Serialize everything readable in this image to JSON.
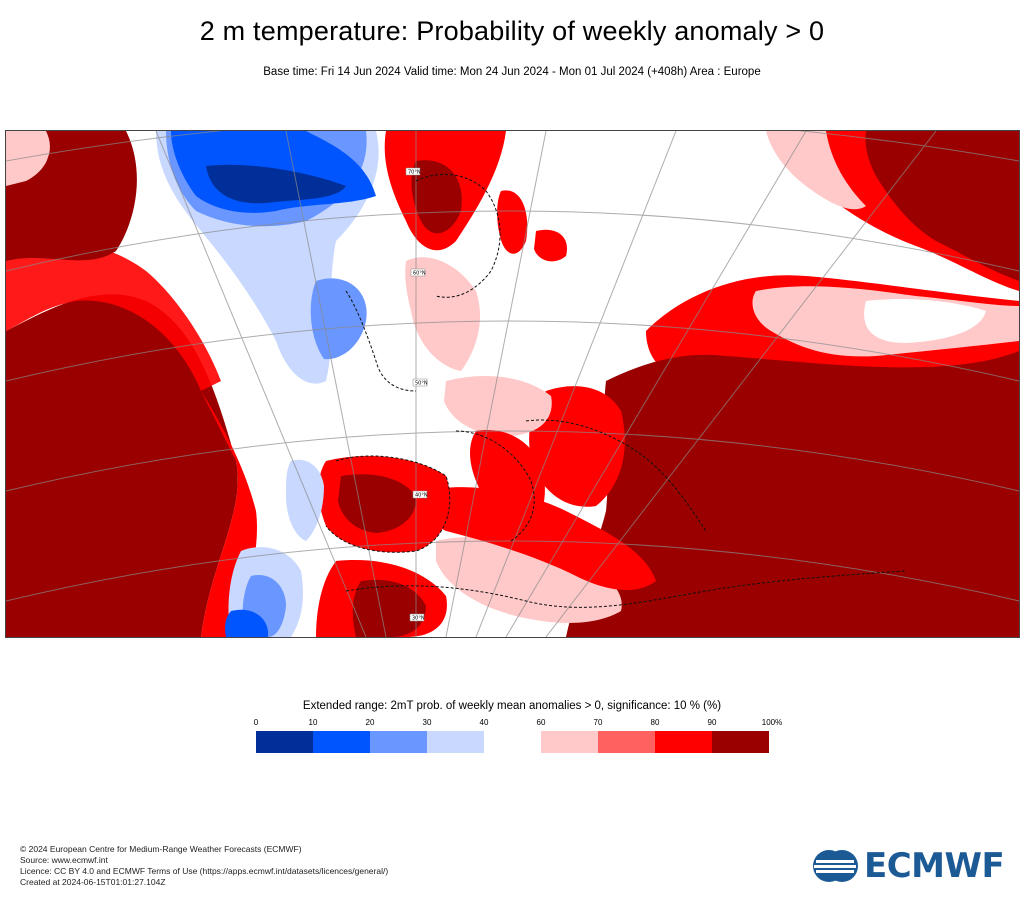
{
  "header": {
    "title": "2 m temperature: Probability of weekly anomaly > 0",
    "subtitle": "Base time: Fri 14 Jun 2024 Valid time: Mon 24 Jun 2024 - Mon 01 Jul 2024 (+408h) Area : Europe"
  },
  "map": {
    "area": "Europe",
    "colors": {
      "p0_10": "#002f9a",
      "p10_20": "#0055ff",
      "p20_30": "#6a96ff",
      "p30_40": "#c8d8ff",
      "p60_70": "#ffc9c9",
      "p70_80": "#ff6161",
      "p80_90": "#ff0000",
      "p90_100": "#9a0000"
    },
    "gridline_labels": [
      "70°N",
      "60°N",
      "50°N",
      "40°N",
      "30°N"
    ]
  },
  "legend": {
    "title": "Extended range: 2mT prob. of weekly mean anomalies > 0, significance: 10 % (%)",
    "ticks": [
      "0",
      "10",
      "20",
      "30",
      "40",
      "60",
      "70",
      "80",
      "90",
      "100%"
    ],
    "swatches": [
      {
        "color": "#002f9a"
      },
      {
        "color": "#0055ff"
      },
      {
        "color": "#6a96ff"
      },
      {
        "color": "#c8d8ff"
      },
      {
        "color": "#ffc9c9"
      },
      {
        "color": "#ff6161"
      },
      {
        "color": "#ff0000"
      },
      {
        "color": "#9a0000"
      }
    ]
  },
  "footer": {
    "line1": "© 2024 European Centre for Medium-Range Weather Forecasts (ECMWF)",
    "line2": "Source: www.ecmwf.int",
    "line3": "Licence: CC BY 4.0 and ECMWF Terms of Use (https://apps.ecmwf.int/datasets/licences/general/)",
    "line4": "Created at 2024-06-15T01:01:27.104Z"
  },
  "logo": {
    "text": "ECMWF",
    "color": "#1c5a96"
  }
}
